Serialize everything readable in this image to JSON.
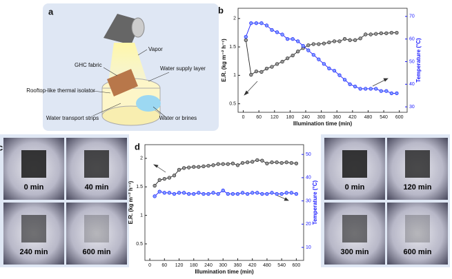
{
  "schematic": {
    "label": "a",
    "parts": [
      "Vapor",
      "GHC fabric",
      "Water supply layer",
      "Rooftop-like thermal isolator",
      "Water transport strips",
      "Water or brines"
    ]
  },
  "photos_c": {
    "label": "c",
    "captions": [
      "0 min",
      "40 min",
      "240 min",
      "600 min"
    ]
  },
  "photos_e": {
    "label": "e",
    "captions": [
      "0 min",
      "120 min",
      "300 min",
      "600 min"
    ]
  },
  "chart_data": [
    {
      "type": "line",
      "panel_label": "b",
      "xlabel": "Illumination time (min)",
      "ylabel": "E.R. (kg m⁻² h⁻¹)",
      "y2label": "Temperature (°C)",
      "x": [
        10,
        30,
        50,
        70,
        90,
        110,
        130,
        150,
        170,
        190,
        210,
        230,
        250,
        270,
        290,
        310,
        330,
        350,
        370,
        390,
        410,
        430,
        450,
        470,
        490,
        510,
        530,
        550,
        570,
        590
      ],
      "xlim": [
        -20,
        630
      ],
      "xticks": [
        0,
        60,
        120,
        180,
        240,
        300,
        360,
        420,
        480,
        540,
        600
      ],
      "ylim": [
        0.35,
        2.18
      ],
      "yticks": [
        0.5,
        1.0,
        1.5,
        2.0
      ],
      "y2lim": [
        27.6,
        73.6
      ],
      "y2ticks": [
        30,
        40,
        50,
        60,
        70
      ],
      "series": [
        {
          "name": "E.R.",
          "color": "#222222",
          "values": [
            1.62,
            1.01,
            1.07,
            1.06,
            1.12,
            1.15,
            1.2,
            1.24,
            1.3,
            1.35,
            1.42,
            1.48,
            1.53,
            1.55,
            1.55,
            1.56,
            1.58,
            1.6,
            1.6,
            1.64,
            1.62,
            1.62,
            1.65,
            1.72,
            1.72,
            1.73,
            1.74,
            1.74,
            1.75,
            1.75
          ]
        },
        {
          "name": "Temperature",
          "color": "#1a1aff",
          "axis": "y2",
          "values": [
            61,
            67,
            67,
            67,
            66,
            64,
            63,
            62,
            60,
            60,
            59,
            57,
            55,
            53,
            51,
            49,
            47,
            46,
            44,
            42,
            40,
            39,
            38,
            38,
            38,
            38,
            37,
            37,
            36,
            36
          ]
        }
      ]
    },
    {
      "type": "line",
      "panel_label": "d",
      "xlabel": "Illumination time (min)",
      "ylabel": "E.R. (kg m⁻² h⁻¹)",
      "y2label": "Temperature (°C)",
      "x": [
        20,
        40,
        60,
        80,
        100,
        120,
        140,
        160,
        180,
        200,
        220,
        240,
        260,
        280,
        300,
        320,
        340,
        360,
        380,
        400,
        420,
        440,
        460,
        480,
        500,
        520,
        540,
        560,
        580,
        600
      ],
      "xlim": [
        -20,
        630
      ],
      "xticks": [
        0,
        60,
        120,
        180,
        240,
        300,
        360,
        420,
        480,
        540,
        600
      ],
      "ylim": [
        0.21,
        2.24
      ],
      "yticks": [
        0.5,
        1.0,
        1.5,
        2.0
      ],
      "y2lim": [
        4.4,
        54.2
      ],
      "y2ticks": [
        10,
        20,
        30,
        40,
        50
      ],
      "series": [
        {
          "name": "E.R.",
          "color": "#222222",
          "values": [
            1.52,
            1.62,
            1.64,
            1.66,
            1.7,
            1.8,
            1.83,
            1.84,
            1.85,
            1.85,
            1.86,
            1.87,
            1.88,
            1.9,
            1.9,
            1.9,
            1.91,
            1.88,
            1.92,
            1.93,
            1.94,
            1.97,
            1.96,
            1.91,
            1.93,
            1.93,
            1.92,
            1.93,
            1.92,
            1.91
          ]
        },
        {
          "name": "Temperature",
          "color": "#1a1aff",
          "axis": "y2",
          "values": [
            32,
            34,
            33.5,
            33.5,
            33,
            33.5,
            33.5,
            33,
            33,
            33.5,
            33,
            33,
            33.5,
            33,
            34.5,
            33,
            33,
            33,
            33.5,
            33,
            33.5,
            33.5,
            33,
            33,
            33.5,
            33,
            33,
            33.5,
            33.5,
            33
          ]
        }
      ]
    }
  ]
}
